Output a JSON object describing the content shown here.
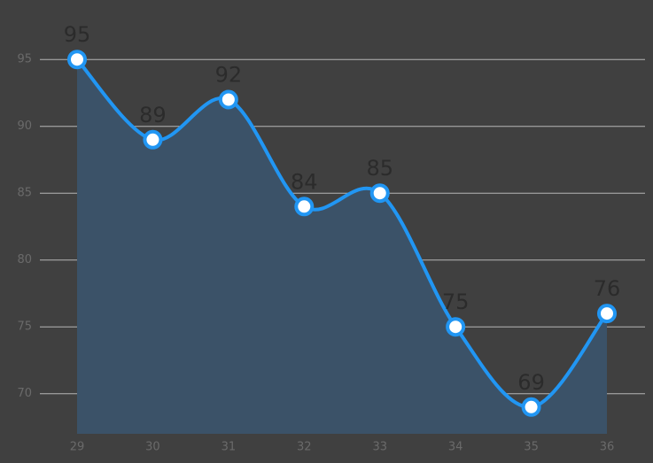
{
  "chart_data": {
    "type": "area",
    "categories": [
      "29",
      "30",
      "31",
      "32",
      "33",
      "34",
      "35",
      "36"
    ],
    "values": [
      95,
      89,
      92,
      84,
      85,
      75,
      69,
      76
    ],
    "color": "#2196f3",
    "area_color": "#3b5268",
    "ylim": [
      67,
      97
    ],
    "yticks": [
      70,
      75,
      80,
      85,
      90,
      95
    ],
    "grid": true
  }
}
